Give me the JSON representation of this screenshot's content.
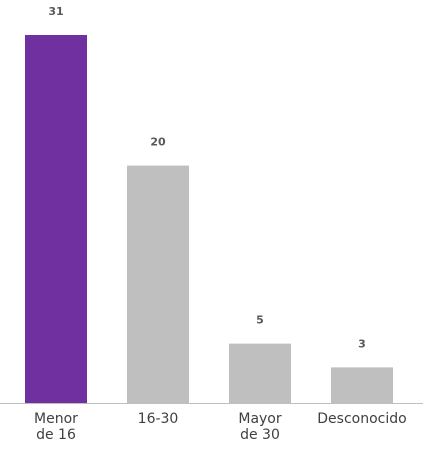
{
  "chart_data": {
    "type": "bar",
    "categories": [
      "Menor de 16",
      "16-30",
      "Mayor de 30",
      "Desconocido"
    ],
    "values": [
      31,
      20,
      5,
      3
    ],
    "colors": [
      "#7030a0",
      "#bfbfbf",
      "#bfbfbf",
      "#bfbfbf"
    ]
  }
}
